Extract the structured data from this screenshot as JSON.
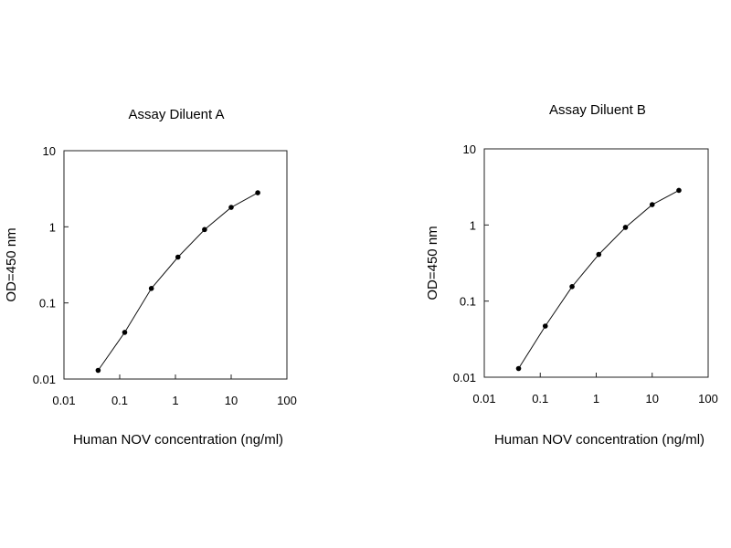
{
  "chart_data": [
    {
      "type": "line",
      "title": "Assay Diluent A",
      "xlabel": "Human NOV concentration (ng/ml)",
      "ylabel": "OD=450 nm",
      "xscale": "log",
      "yscale": "log",
      "xlim": [
        0.01,
        100
      ],
      "ylim": [
        0.01,
        10
      ],
      "xticks": [
        "0.01",
        "0.1",
        "1",
        "10",
        "100"
      ],
      "yticks": [
        "0.01",
        "0.1",
        "1",
        "10"
      ],
      "grid": false,
      "legend": "none",
      "series": [
        {
          "x": [
            0.041,
            0.123,
            0.37,
            1.11,
            3.33,
            10,
            30
          ],
          "y": [
            0.013,
            0.041,
            0.155,
            0.4,
            0.92,
            1.8,
            2.8
          ]
        }
      ]
    },
    {
      "type": "line",
      "title": "Assay Diluent B",
      "xlabel": "Human NOV concentration (ng/ml)",
      "ylabel": "OD=450 nm",
      "xscale": "log",
      "yscale": "log",
      "xlim": [
        0.01,
        100
      ],
      "ylim": [
        0.01,
        10
      ],
      "xticks": [
        "0.01",
        "0.1",
        "1",
        "10",
        "100"
      ],
      "yticks": [
        "0.01",
        "0.1",
        "1",
        "10"
      ],
      "grid": false,
      "legend": "none",
      "series": [
        {
          "x": [
            0.041,
            0.123,
            0.37,
            1.11,
            3.33,
            10,
            30
          ],
          "y": [
            0.013,
            0.047,
            0.155,
            0.41,
            0.93,
            1.85,
            2.85
          ]
        }
      ]
    }
  ]
}
